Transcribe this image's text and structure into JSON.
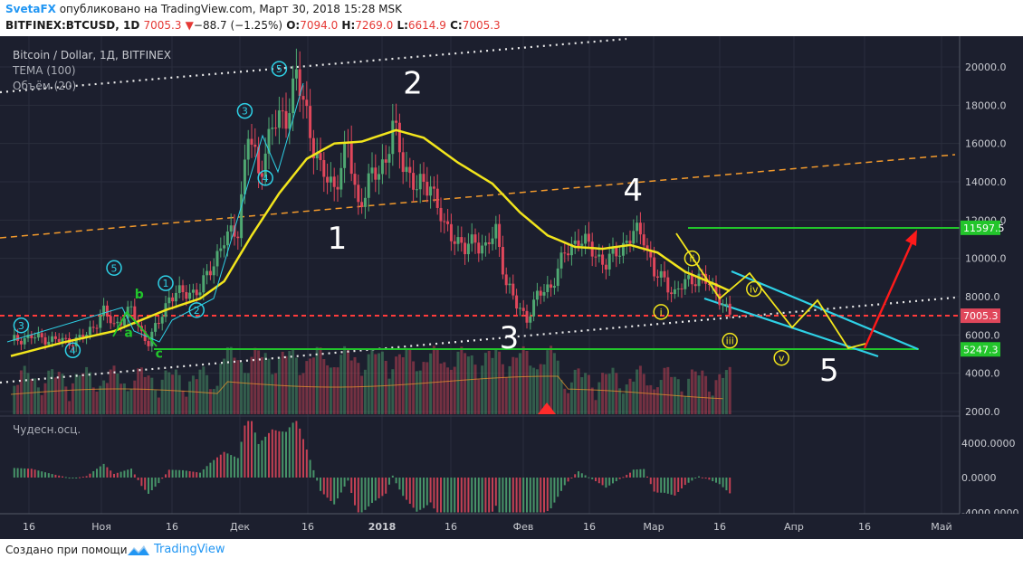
{
  "header": {
    "author": "SvetaFX",
    "published": " опубликовано на TradingView.com, Март 30, 2018 15:28 MSK",
    "symbol": "BITFINEX:BTCUSD, 1D",
    "price": "7005.3",
    "change_arrow": "▼",
    "change": "−88.7 (−1.25%)",
    "o_label": "O:",
    "o": "7094.0",
    "h_label": "H:",
    "h": "7269.0",
    "l_label": "L:",
    "l": "6614.9",
    "c_label": "C:",
    "c": "7005.3"
  },
  "legend": {
    "title": "Bitcoin / Dollar, 1Д, BITFINEX",
    "tema": "TEMA (100)",
    "volume": "Объём (20)",
    "oscillator": "Чудесн.осц."
  },
  "footer": {
    "text": "Создано при помощи",
    "brand": "TradingView"
  },
  "colors": {
    "background": "#1c1f2e",
    "up": "#4fa872",
    "down": "#e0475b",
    "tema": "#f2e51c",
    "green_line": "#22c52b",
    "red_dashed": "#ff3b3b",
    "orange_dashed": "#f39a2c",
    "cyan": "#2ed1e6",
    "arrow": "#ff1a1a"
  },
  "chart_data": {
    "type": "candlestick",
    "title": "Bitcoin / Dollar, 1Д, BITFINEX",
    "y_axis_ticks": [
      "20000.0",
      "18000.0",
      "16000.0",
      "14000.0",
      "12000.0",
      "10000.0",
      "8000.0",
      "6000.0",
      "4000.0",
      "2000.0"
    ],
    "oscillator_ticks": [
      "4000.0000",
      "0.0000",
      "-4000.0000"
    ],
    "x_axis_ticks": [
      "16",
      "Ноя",
      "16",
      "Дек",
      "16",
      "2018",
      "16",
      "Фев",
      "16",
      "Мар",
      "16",
      "Апр",
      "16",
      "Май"
    ],
    "price_labels": [
      {
        "value": 11597.5,
        "text": "11597.5",
        "color": "#22c52b"
      },
      {
        "value": 7005.3,
        "text": "7005.3",
        "color": "#e0475b"
      },
      {
        "value": 5247.3,
        "text": "5247.3",
        "color": "#22c52b"
      }
    ],
    "close_path": [
      {
        "day": 0,
        "price": 5700
      },
      {
        "day": 6,
        "price": 5900
      },
      {
        "day": 12,
        "price": 5750
      },
      {
        "day": 18,
        "price": 5650
      },
      {
        "day": 22,
        "price": 6000
      },
      {
        "day": 27,
        "price": 7200
      },
      {
        "day": 30,
        "price": 6500
      },
      {
        "day": 35,
        "price": 7300
      },
      {
        "day": 38,
        "price": 6100
      },
      {
        "day": 40,
        "price": 5600
      },
      {
        "day": 43,
        "price": 6700
      },
      {
        "day": 46,
        "price": 8000
      },
      {
        "day": 50,
        "price": 8200
      },
      {
        "day": 55,
        "price": 8300
      },
      {
        "day": 58,
        "price": 9500
      },
      {
        "day": 62,
        "price": 10900
      },
      {
        "day": 66,
        "price": 11600
      },
      {
        "day": 69,
        "price": 16500
      },
      {
        "day": 72,
        "price": 14500
      },
      {
        "day": 76,
        "price": 16800
      },
      {
        "day": 80,
        "price": 17600
      },
      {
        "day": 83,
        "price": 19400
      },
      {
        "day": 86,
        "price": 17500
      },
      {
        "day": 90,
        "price": 14500
      },
      {
        "day": 94,
        "price": 13800
      },
      {
        "day": 98,
        "price": 15800
      },
      {
        "day": 101,
        "price": 12800
      },
      {
        "day": 105,
        "price": 14200
      },
      {
        "day": 109,
        "price": 15200
      },
      {
        "day": 111,
        "price": 16800
      },
      {
        "day": 114,
        "price": 15100
      },
      {
        "day": 118,
        "price": 13600
      },
      {
        "day": 122,
        "price": 14000
      },
      {
        "day": 126,
        "price": 11500
      },
      {
        "day": 129,
        "price": 11200
      },
      {
        "day": 132,
        "price": 10400
      },
      {
        "day": 135,
        "price": 11000
      },
      {
        "day": 138,
        "price": 10500
      },
      {
        "day": 141,
        "price": 11400
      },
      {
        "day": 144,
        "price": 8800
      },
      {
        "day": 147,
        "price": 7500
      },
      {
        "day": 150,
        "price": 6900
      },
      {
        "day": 153,
        "price": 8000
      },
      {
        "day": 157,
        "price": 8600
      },
      {
        "day": 161,
        "price": 10200
      },
      {
        "day": 165,
        "price": 11100
      },
      {
        "day": 169,
        "price": 10400
      },
      {
        "day": 173,
        "price": 9700
      },
      {
        "day": 177,
        "price": 10500
      },
      {
        "day": 181,
        "price": 11300
      },
      {
        "day": 184,
        "price": 11200
      },
      {
        "day": 187,
        "price": 9200
      },
      {
        "day": 190,
        "price": 8800
      },
      {
        "day": 193,
        "price": 8200
      },
      {
        "day": 196,
        "price": 8700
      },
      {
        "day": 200,
        "price": 9100
      },
      {
        "day": 203,
        "price": 8600
      },
      {
        "day": 206,
        "price": 8000
      },
      {
        "day": 209,
        "price": 7005
      }
    ],
    "tema_path": [
      {
        "day": 0,
        "price": 4900
      },
      {
        "day": 15,
        "price": 5600
      },
      {
        "day": 30,
        "price": 6200
      },
      {
        "day": 45,
        "price": 7300
      },
      {
        "day": 55,
        "price": 7900
      },
      {
        "day": 62,
        "price": 8800
      },
      {
        "day": 70,
        "price": 11200
      },
      {
        "day": 78,
        "price": 13400
      },
      {
        "day": 86,
        "price": 15200
      },
      {
        "day": 94,
        "price": 16000
      },
      {
        "day": 102,
        "price": 16100
      },
      {
        "day": 112,
        "price": 16700
      },
      {
        "day": 120,
        "price": 16300
      },
      {
        "day": 130,
        "price": 15000
      },
      {
        "day": 140,
        "price": 13900
      },
      {
        "day": 148,
        "price": 12400
      },
      {
        "day": 156,
        "price": 11200
      },
      {
        "day": 164,
        "price": 10600
      },
      {
        "day": 172,
        "price": 10500
      },
      {
        "day": 180,
        "price": 10700
      },
      {
        "day": 188,
        "price": 10300
      },
      {
        "day": 196,
        "price": 9300
      },
      {
        "day": 204,
        "price": 8700
      },
      {
        "day": 209,
        "price": 8300
      }
    ],
    "wave_labels": [
      {
        "day": 92,
        "price": 10500,
        "text": "1"
      },
      {
        "day": 114,
        "price": 18600,
        "text": "2"
      },
      {
        "day": 142,
        "price": 5300,
        "text": "3"
      },
      {
        "day": 178,
        "price": 13000,
        "text": "4"
      },
      {
        "day": 235,
        "price": 3600,
        "text": "5"
      }
    ],
    "circle_labels": [
      {
        "day": 3,
        "price": 6500,
        "text": "3",
        "color": "#2ed1e6"
      },
      {
        "day": 18,
        "price": 5200,
        "text": "4",
        "color": "#2ed1e6"
      },
      {
        "day": 30,
        "price": 9500,
        "text": "5",
        "color": "#2ed1e6"
      },
      {
        "day": 45,
        "price": 8700,
        "text": "1",
        "color": "#2ed1e6"
      },
      {
        "day": 54,
        "price": 7300,
        "text": "2",
        "color": "#2ed1e6"
      },
      {
        "day": 68,
        "price": 17700,
        "text": "3",
        "color": "#2ed1e6"
      },
      {
        "day": 74,
        "price": 14200,
        "text": "4",
        "color": "#2ed1e6"
      },
      {
        "day": 78,
        "price": 19900,
        "text": "5",
        "color": "#2ed1e6"
      },
      {
        "day": 198,
        "price": 10000,
        "text": "ii",
        "color": "#f2e51c"
      },
      {
        "day": 189,
        "price": 7200,
        "text": "i",
        "color": "#f2e51c"
      },
      {
        "day": 216,
        "price": 8400,
        "text": "iv",
        "color": "#f2e51c"
      },
      {
        "day": 209,
        "price": 5700,
        "text": "iii",
        "color": "#f2e51c"
      },
      {
        "day": 224,
        "price": 4800,
        "text": "v",
        "color": "#f2e51c"
      }
    ],
    "abc_labels": [
      {
        "day": 33,
        "price": 5900,
        "text": "a"
      },
      {
        "day": 36,
        "price": 7900,
        "text": "b"
      },
      {
        "day": 42,
        "price": 4800,
        "text": "c"
      }
    ]
  }
}
